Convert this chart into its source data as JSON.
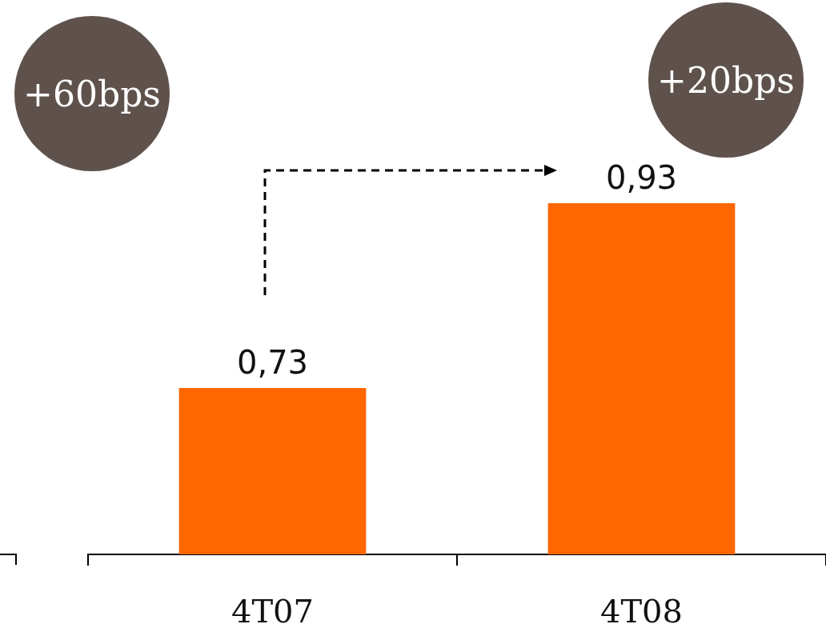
{
  "chart_data": {
    "type": "bar",
    "categories": [
      "4T07",
      "4T08"
    ],
    "values": [
      0.73,
      0.93
    ],
    "color": "#ff6600",
    "value_labels": [
      "0,73",
      "0,93"
    ],
    "ylim": [
      0.55,
      1.15
    ],
    "tick_labels": "x",
    "annotations": [
      "+60bps",
      "+20bps"
    ]
  }
}
